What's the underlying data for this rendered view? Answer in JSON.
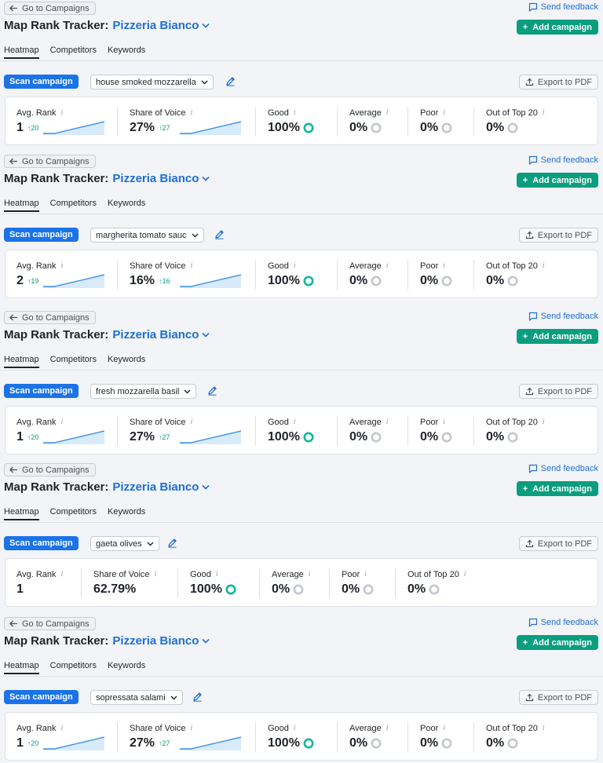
{
  "common": {
    "back_label": "Go to Campaigns",
    "feedback_label": "Send feedback",
    "title_prefix": "Map Rank Tracker:",
    "campaign_name": "Pizzeria Bianco",
    "add_campaign_label": "Add campaign",
    "tabs": [
      "Heatmap",
      "Competitors",
      "Keywords"
    ],
    "scan_label": "Scan campaign",
    "export_label": "Export to PDF",
    "metric_labels": {
      "avg_rank": "Avg. Rank",
      "share_of_voice": "Share of Voice",
      "good": "Good",
      "average": "Average",
      "poor": "Poor",
      "out_of_top_20": "Out of Top 20"
    },
    "colors": {
      "accent_blue": "#1a73e8",
      "brand_green": "#0a9e7f",
      "good_ring": "#10b89a",
      "neutral_ring": "#c3c7cd",
      "spark_line": "#3a8fe6",
      "spark_fill": "#d7ebfb"
    },
    "icons": {
      "back": "arrow-left-icon",
      "feedback": "chat-bubble-icon",
      "add": "plus-icon",
      "dropdown": "chevron-down-icon",
      "edit": "pencil-icon",
      "export": "upload-icon",
      "info": "info-icon"
    }
  },
  "reports": [
    {
      "keyword": "house smoked mozzarella",
      "avg_rank": {
        "value": "1",
        "delta": "20"
      },
      "share_of_voice": {
        "value": "27%",
        "delta": "27"
      },
      "good": "100%",
      "average": "0%",
      "poor": "0%",
      "out_of_top_20": "0%"
    },
    {
      "keyword": "margherita tomato sauc",
      "avg_rank": {
        "value": "2",
        "delta": "19"
      },
      "share_of_voice": {
        "value": "16%",
        "delta": "16"
      },
      "good": "100%",
      "average": "0%",
      "poor": "0%",
      "out_of_top_20": "0%"
    },
    {
      "keyword": "fresh mozzarella basil",
      "avg_rank": {
        "value": "1",
        "delta": "20"
      },
      "share_of_voice": {
        "value": "27%",
        "delta": "27"
      },
      "good": "100%",
      "average": "0%",
      "poor": "0%",
      "out_of_top_20": "0%"
    },
    {
      "keyword": "gaeta olives",
      "avg_rank": {
        "value": "1",
        "delta": ""
      },
      "share_of_voice": {
        "value": "62.79%",
        "delta": ""
      },
      "good": "100%",
      "average": "0%",
      "poor": "0%",
      "out_of_top_20": "0%"
    },
    {
      "keyword": "sopressata salami",
      "avg_rank": {
        "value": "1",
        "delta": "20"
      },
      "share_of_voice": {
        "value": "27%",
        "delta": "27"
      },
      "good": "100%",
      "average": "0%",
      "poor": "0%",
      "out_of_top_20": "0%"
    }
  ]
}
